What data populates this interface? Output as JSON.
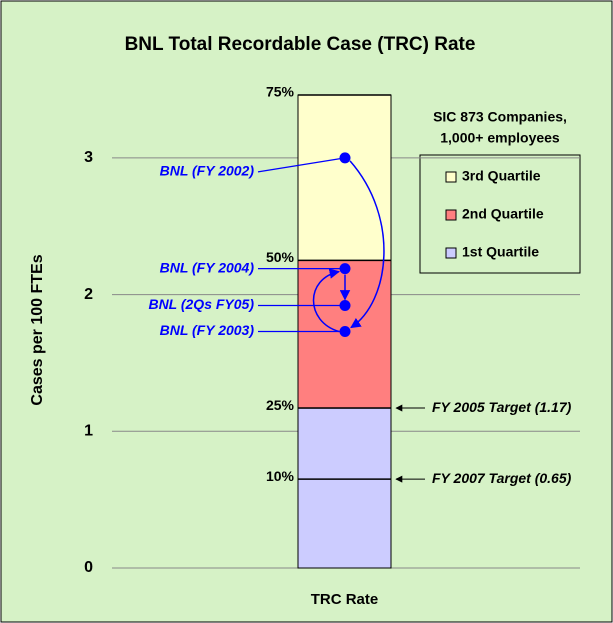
{
  "chart_data": {
    "type": "stacked_bar_points",
    "title": "BNL Total Recordable Case (TRC) Rate",
    "y_label": "Cases per 100 FTEs",
    "categories": [
      "TRC Rate"
    ],
    "ylim": [
      0,
      3.46
    ],
    "yticks": [
      0,
      1,
      2,
      3
    ],
    "grid": true,
    "legend_title": [
      "SIC 873 Companies,",
      "1,000+ employees"
    ],
    "series": [
      {
        "name": "1st Quartile",
        "color": "#ccccff",
        "values": [
          1.17
        ]
      },
      {
        "name": "2nd Quartile",
        "color": "#ff7f7f",
        "values": [
          1.08
        ]
      },
      {
        "name": "3rd Quartile",
        "color": "#ffffcc",
        "values": [
          1.21
        ]
      }
    ],
    "percentiles": [
      {
        "value": 3.46,
        "label": "75%"
      },
      {
        "value": 2.25,
        "label": "50%"
      },
      {
        "value": 1.17,
        "label": "25%"
      },
      {
        "value": 0.65,
        "label": "10%"
      }
    ],
    "points": {
      "color": "#0000ff",
      "labels": [
        "BNL (FY 2002)",
        "BNL (FY 2004)",
        "BNL (2Qs FY05)",
        "BNL (FY 2003)"
      ],
      "values": [
        3.0,
        2.19,
        1.92,
        1.73
      ]
    },
    "targets": [
      {
        "value": 1.17,
        "label": "FY 2005 Target (1.17)"
      },
      {
        "value": 0.65,
        "label": "FY 2007 Target (0.65)"
      }
    ]
  }
}
